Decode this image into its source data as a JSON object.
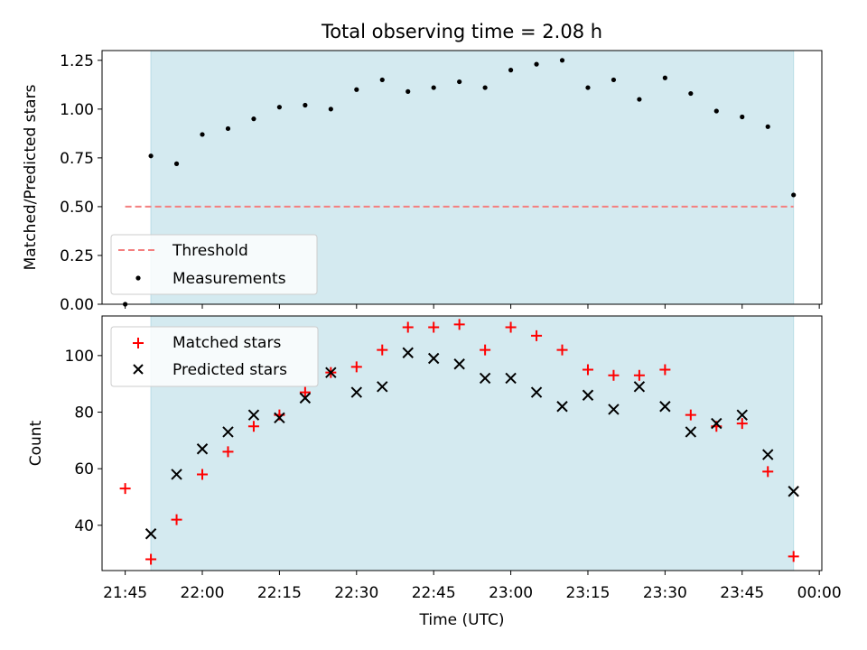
{
  "chart_data": [
    {
      "type": "scatter",
      "title": "Total observing time = 2.08 h",
      "ylabel": "Matched/Predicted stars",
      "xlabel": "",
      "ylim": [
        0,
        1.3
      ],
      "yticks": [
        "0.00",
        "0.25",
        "0.50",
        "0.75",
        "1.00",
        "1.25"
      ],
      "ytick_values": [
        0,
        0.25,
        0.5,
        0.75,
        1.0,
        1.25
      ],
      "shaded_span": [
        "21:50",
        "23:55"
      ],
      "threshold": {
        "name": "Threshold",
        "value": 0.5,
        "x_start": "21:45",
        "x_end": "23:55",
        "color": "#f47f7f"
      },
      "series": [
        {
          "name": "Measurements",
          "marker": "dot",
          "color": "#000000",
          "x": [
            "21:45",
            "21:50",
            "21:55",
            "22:00",
            "22:05",
            "22:10",
            "22:15",
            "22:20",
            "22:25",
            "22:30",
            "22:35",
            "22:40",
            "22:45",
            "22:50",
            "22:55",
            "23:00",
            "23:05",
            "23:10",
            "23:15",
            "23:20",
            "23:25",
            "23:30",
            "23:35",
            "23:40",
            "23:45",
            "23:50",
            "23:55"
          ],
          "values": [
            0.0,
            0.76,
            0.72,
            0.87,
            0.9,
            0.95,
            1.01,
            1.02,
            1.0,
            1.1,
            1.15,
            1.09,
            1.11,
            1.14,
            1.11,
            1.2,
            1.23,
            1.25,
            1.11,
            1.15,
            1.05,
            1.16,
            1.08,
            0.99,
            0.96,
            0.91,
            0.56
          ]
        }
      ],
      "legend": [
        "Threshold",
        "Measurements"
      ],
      "legend_position": "lower-left",
      "grid": false
    },
    {
      "type": "scatter",
      "title": "",
      "ylabel": "Count",
      "xlabel": "Time (UTC)",
      "ylim": [
        24,
        114
      ],
      "yticks": [
        "40",
        "60",
        "80",
        "100"
      ],
      "ytick_values": [
        40,
        60,
        80,
        100
      ],
      "xticks": [
        "21:45",
        "22:00",
        "22:15",
        "22:30",
        "22:45",
        "23:00",
        "23:15",
        "23:30",
        "23:45",
        "00:00"
      ],
      "shaded_span": [
        "21:50",
        "23:55"
      ],
      "series": [
        {
          "name": "Matched stars",
          "marker": "plus",
          "color": "#ff0000",
          "x": [
            "21:45",
            "21:50",
            "21:55",
            "22:00",
            "22:05",
            "22:10",
            "22:15",
            "22:20",
            "22:25",
            "22:30",
            "22:35",
            "22:40",
            "22:45",
            "22:50",
            "22:55",
            "23:00",
            "23:05",
            "23:10",
            "23:15",
            "23:20",
            "23:25",
            "23:30",
            "23:35",
            "23:40",
            "23:45",
            "23:50",
            "23:55"
          ],
          "values": [
            53,
            28,
            42,
            58,
            66,
            75,
            79,
            87,
            94,
            96,
            102,
            110,
            110,
            111,
            102,
            110,
            107,
            102,
            95,
            93,
            93,
            95,
            79,
            75,
            76,
            59,
            29
          ]
        },
        {
          "name": "Predicted stars",
          "marker": "x",
          "color": "#000000",
          "x": [
            "21:50",
            "21:55",
            "22:00",
            "22:05",
            "22:10",
            "22:15",
            "22:20",
            "22:25",
            "22:30",
            "22:35",
            "22:40",
            "22:45",
            "22:50",
            "22:55",
            "23:00",
            "23:05",
            "23:10",
            "23:15",
            "23:20",
            "23:25",
            "23:30",
            "23:35",
            "23:40",
            "23:45",
            "23:50",
            "23:55"
          ],
          "values": [
            37,
            58,
            67,
            73,
            79,
            78,
            85,
            94,
            87,
            89,
            101,
            99,
            97,
            92,
            92,
            87,
            82,
            86,
            81,
            89,
            82,
            73,
            76,
            79,
            65,
            52
          ]
        }
      ],
      "legend": [
        "Matched stars",
        "Predicted stars"
      ],
      "legend_position": "upper-left",
      "grid": false
    }
  ],
  "colors": {
    "shade": "#d4eaf0",
    "shade_edge": "#b9dde6"
  }
}
